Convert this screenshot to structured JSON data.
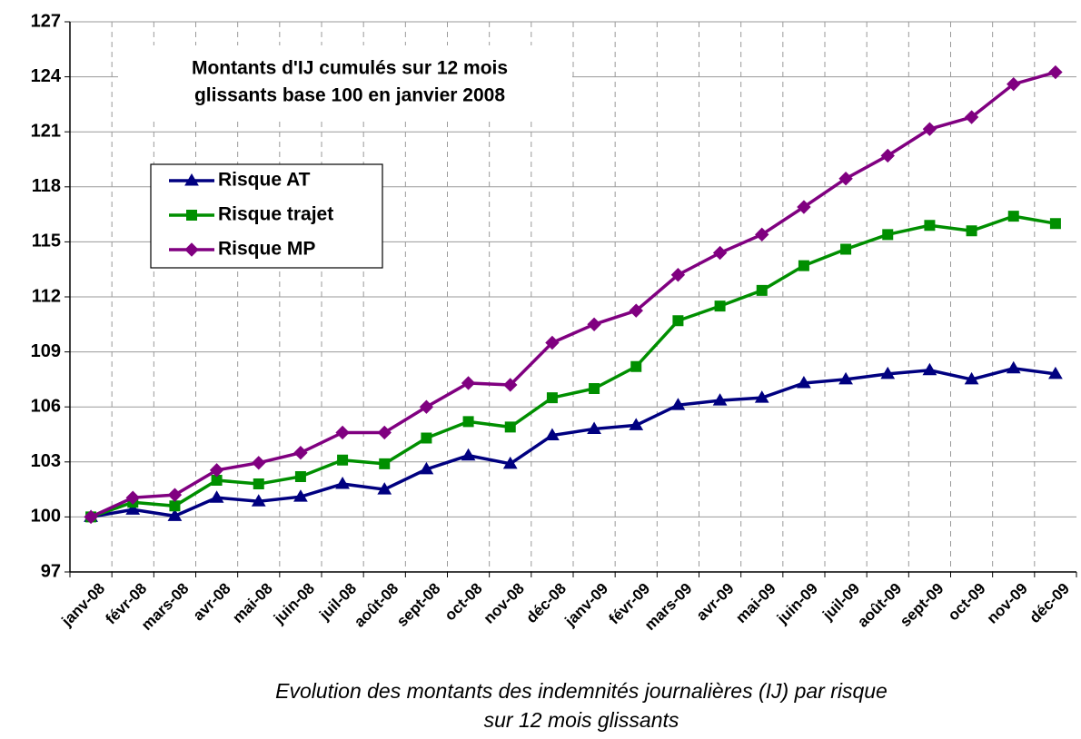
{
  "chart_data": {
    "type": "line",
    "title": [
      "Montants d'IJ cumulés sur 12 mois",
      "glissants base 100 en janvier 2008"
    ],
    "caption": [
      "Evolution des montants des indemnités journalières (IJ) par risque",
      "sur 12 mois glissants"
    ],
    "categories": [
      "janv-08",
      "févr-08",
      "mars-08",
      "avr-08",
      "mai-08",
      "juin-08",
      "juil-08",
      "août-08",
      "sept-08",
      "oct-08",
      "nov-08",
      "déc-08",
      "janv-09",
      "févr-09",
      "mars-09",
      "avr-09",
      "mai-09",
      "juin-09",
      "juil-09",
      "août-09",
      "sept-09",
      "oct-09",
      "nov-09",
      "déc-09"
    ],
    "series": [
      {
        "name": "Risque AT",
        "color": "#000080",
        "marker": "triangle",
        "values": [
          100,
          100.4,
          100.05,
          101.05,
          100.85,
          101.1,
          101.8,
          101.5,
          102.6,
          103.35,
          102.9,
          104.45,
          104.8,
          105,
          106.1,
          106.35,
          106.5,
          107.3,
          107.5,
          107.8,
          108,
          107.5,
          108.1,
          107.8
        ]
      },
      {
        "name": "Risque trajet",
        "color": "#008f00",
        "marker": "square",
        "values": [
          100,
          100.8,
          100.6,
          102,
          101.8,
          102.2,
          103.1,
          102.9,
          104.3,
          105.2,
          104.9,
          106.5,
          107,
          108.2,
          110.7,
          111.5,
          112.35,
          113.7,
          114.6,
          115.4,
          115.9,
          115.6,
          116.4,
          116
        ]
      },
      {
        "name": "Risque MP",
        "color": "#800080",
        "marker": "diamond",
        "values": [
          100,
          101.05,
          101.2,
          102.55,
          102.95,
          103.5,
          104.6,
          104.6,
          106,
          107.3,
          107.2,
          109.5,
          110.5,
          111.25,
          113.2,
          114.4,
          115.4,
          116.9,
          118.45,
          119.7,
          121.15,
          121.8,
          123.6,
          124.25
        ]
      }
    ],
    "ylim": [
      97,
      127
    ],
    "yticks": [
      97,
      100,
      103,
      106,
      109,
      112,
      115,
      118,
      121,
      124,
      127
    ],
    "grid": true
  }
}
